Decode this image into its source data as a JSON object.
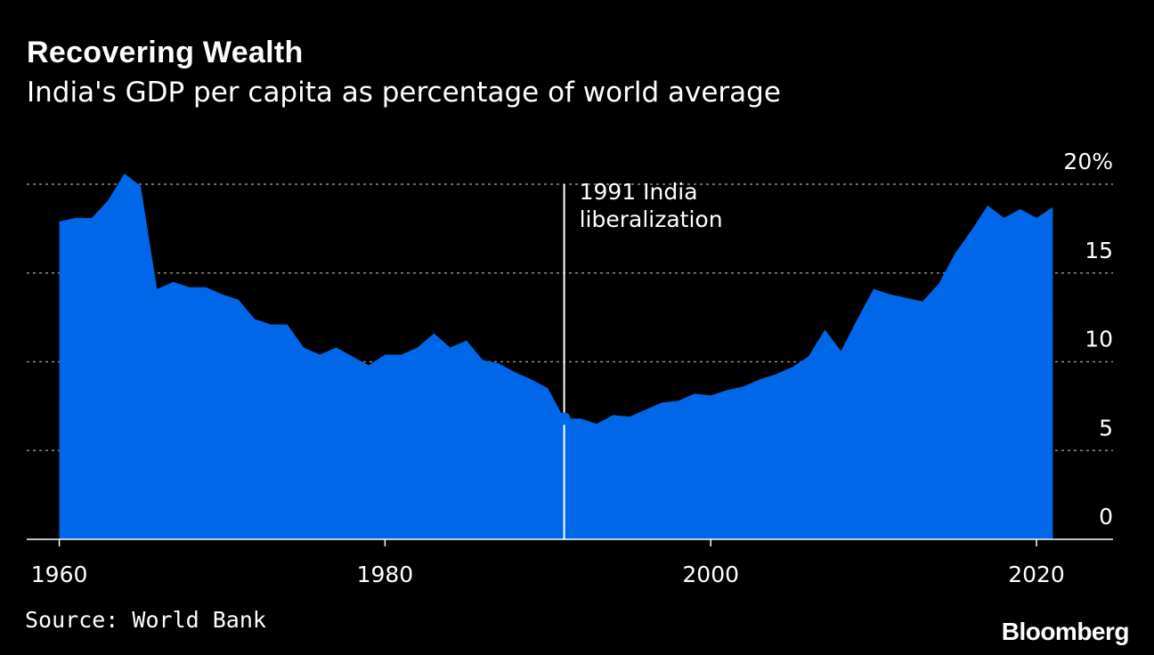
{
  "header": {
    "title": "Recovering Wealth",
    "subtitle": "India's GDP per capita as percentage of world average"
  },
  "footer": {
    "source": "Source: World Bank",
    "brand": "Bloomberg"
  },
  "colors": {
    "area": "#0068E8",
    "background": "#000000",
    "grid": "#8a8a8a",
    "text": "#ffffff"
  },
  "chart_data": {
    "type": "area",
    "title": "Recovering Wealth",
    "subtitle": "India's GDP per capita as percentage of world average",
    "xlabel": "",
    "ylabel": "",
    "xlim": [
      1958,
      2024.7
    ],
    "ylim": [
      0,
      20
    ],
    "grid": true,
    "x_ticks": [
      1960,
      1980,
      2000,
      2020
    ],
    "x_tick_labels": [
      "1960",
      "1980",
      "2000",
      "2020"
    ],
    "y_ticks": [
      0,
      5,
      10,
      15,
      20
    ],
    "y_tick_labels": [
      "0",
      "5",
      "10",
      "15",
      "20%"
    ],
    "series": [
      {
        "name": "India GDP per capita (% of world average)",
        "x": [
          1960,
          1961,
          1962,
          1963,
          1964,
          1965,
          1966,
          1967,
          1968,
          1969,
          1970,
          1971,
          1972,
          1973,
          1974,
          1975,
          1976,
          1977,
          1978,
          1979,
          1980,
          1981,
          1982,
          1983,
          1984,
          1985,
          1986,
          1987,
          1988,
          1989,
          1990,
          1991,
          1992,
          1993,
          1994,
          1995,
          1996,
          1997,
          1998,
          1999,
          2000,
          2001,
          2002,
          2003,
          2004,
          2005,
          2006,
          2007,
          2008,
          2009,
          2010,
          2011,
          2012,
          2013,
          2014,
          2015,
          2016,
          2017,
          2018,
          2019,
          2020,
          2021
        ],
        "values": [
          17.9,
          18.1,
          18.1,
          19.1,
          20.6,
          19.9,
          14.1,
          14.5,
          14.2,
          14.2,
          13.8,
          13.5,
          12.4,
          12.1,
          12.1,
          10.8,
          10.4,
          10.8,
          10.3,
          9.8,
          10.4,
          10.4,
          10.8,
          11.6,
          10.8,
          11.2,
          10.1,
          9.9,
          9.4,
          9.0,
          8.5,
          6.8,
          6.8,
          6.5,
          7.0,
          6.9,
          7.3,
          7.7,
          7.8,
          8.2,
          8.1,
          8.4,
          8.6,
          9.0,
          9.3,
          9.7,
          10.3,
          11.8,
          10.6,
          12.4,
          14.1,
          13.8,
          13.6,
          13.4,
          14.4,
          16.1,
          17.4,
          18.8,
          18.1,
          18.6,
          18.1,
          18.7
        ]
      }
    ],
    "annotations": [
      {
        "x": 1991,
        "value": 6.8,
        "label_lines": [
          "1991 India",
          "liberalization"
        ]
      }
    ]
  }
}
